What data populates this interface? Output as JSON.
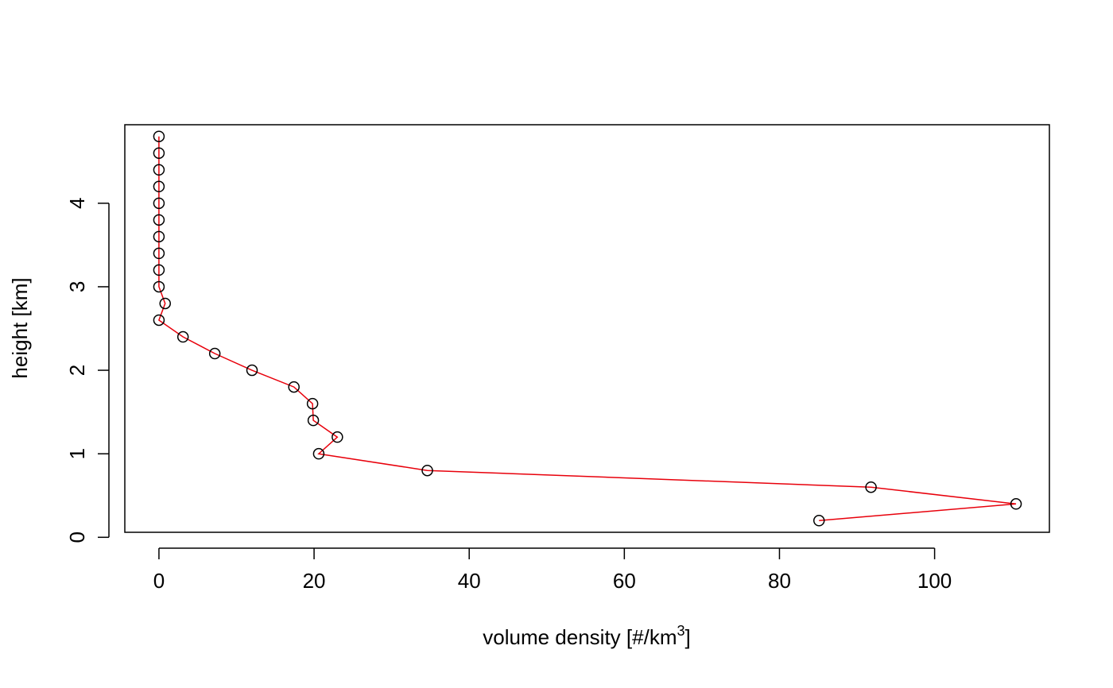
{
  "chart_data": {
    "type": "scatter",
    "title": "",
    "xlabel": "volume density [#/km",
    "xlabel_superscript": "3",
    "xlabel_suffix": "]",
    "ylabel": "height [km]",
    "xlim": [
      -4.4,
      114.8
    ],
    "ylim": [
      0.06,
      4.94
    ],
    "xticks": [
      0,
      20,
      40,
      60,
      80,
      100
    ],
    "yticks": [
      0,
      1,
      2,
      3,
      4
    ],
    "xtick_labels": [
      "0",
      "20",
      "40",
      "60",
      "80",
      "100"
    ],
    "ytick_labels": [
      "0",
      "1",
      "2",
      "3",
      "4"
    ],
    "grid": false,
    "series": [
      {
        "style": "points-and-line",
        "point_color": "#000000",
        "line_color": "#e8000b",
        "x": [
          85.1,
          110.5,
          91.8,
          34.6,
          20.6,
          23.0,
          19.9,
          19.8,
          17.4,
          12.0,
          7.2,
          3.1,
          0.0,
          0.8,
          0.0,
          0.0,
          0.0,
          0.0,
          0.0,
          0.0,
          0.0,
          0.0,
          0.0,
          0.0
        ],
        "y": [
          0.2,
          0.4,
          0.6,
          0.8,
          1.0,
          1.2,
          1.4,
          1.6,
          1.8,
          2.0,
          2.2,
          2.4,
          2.6,
          2.8,
          3.0,
          3.2,
          3.4,
          3.6,
          3.8,
          4.0,
          4.2,
          4.4,
          4.6,
          4.8
        ]
      }
    ]
  }
}
